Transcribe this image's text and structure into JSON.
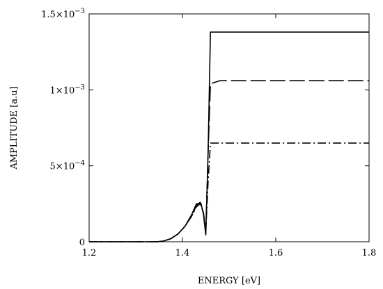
{
  "chart_data": {
    "type": "line",
    "xlabel": "ENERGY [eV]",
    "ylabel": "AMPLITUDE [a.u]",
    "xlim": [
      1.2,
      1.8
    ],
    "ylim": [
      0,
      0.0015
    ],
    "grid": false,
    "legend": "none",
    "x_ticks": [
      {
        "value": 1.2,
        "label": "1.2"
      },
      {
        "value": 1.4,
        "label": "1.4"
      },
      {
        "value": 1.6,
        "label": "1.6"
      },
      {
        "value": 1.8,
        "label": "1.8"
      }
    ],
    "y_ticks": [
      {
        "value": 0,
        "label": "0",
        "base": "0",
        "exp": ""
      },
      {
        "value": 0.0005,
        "label": "5×10−4",
        "base": "5×10",
        "exp": "−4"
      },
      {
        "value": 0.001,
        "label": "1×10−3",
        "base": "1×10",
        "exp": "−3"
      },
      {
        "value": 0.0015,
        "label": "1.5×10−3",
        "base": "1.5×10",
        "exp": "−3"
      }
    ],
    "series": [
      {
        "style": "solid",
        "color": "#000000",
        "x": [
          1.2,
          1.345,
          1.36,
          1.375,
          1.39,
          1.405,
          1.42,
          1.43,
          1.44,
          1.445,
          1.45,
          1.455,
          1.46,
          1.465,
          1.8
        ],
        "y": [
          0,
          0,
          5e-06,
          2e-05,
          5e-05,
          0.0001,
          0.00018,
          0.00025,
          0.00025,
          0.00018,
          4.5e-05,
          0.0006,
          0.00138,
          0.00138,
          0.00138
        ]
      },
      {
        "style": "dashed",
        "color": "#000000",
        "x": [
          1.2,
          1.345,
          1.36,
          1.375,
          1.39,
          1.405,
          1.42,
          1.43,
          1.438,
          1.445,
          1.45,
          1.455,
          1.46,
          1.47,
          1.48,
          1.8
        ],
        "y": [
          0,
          0,
          5e-06,
          2e-05,
          5e-05,
          0.0001,
          0.00017,
          0.00024,
          0.00026,
          0.00019,
          6e-05,
          0.0006,
          0.00104,
          0.00105,
          0.00106,
          0.00106
        ]
      },
      {
        "style": "dashdot",
        "color": "#000000",
        "x": [
          1.2,
          1.345,
          1.36,
          1.375,
          1.39,
          1.405,
          1.42,
          1.43,
          1.438,
          1.445,
          1.45,
          1.455,
          1.46,
          1.8
        ],
        "y": [
          0,
          0,
          5e-06,
          2e-05,
          5e-05,
          0.0001,
          0.00017,
          0.00023,
          0.00025,
          0.00019,
          7e-05,
          0.0004,
          0.00065,
          0.00065
        ]
      }
    ]
  }
}
